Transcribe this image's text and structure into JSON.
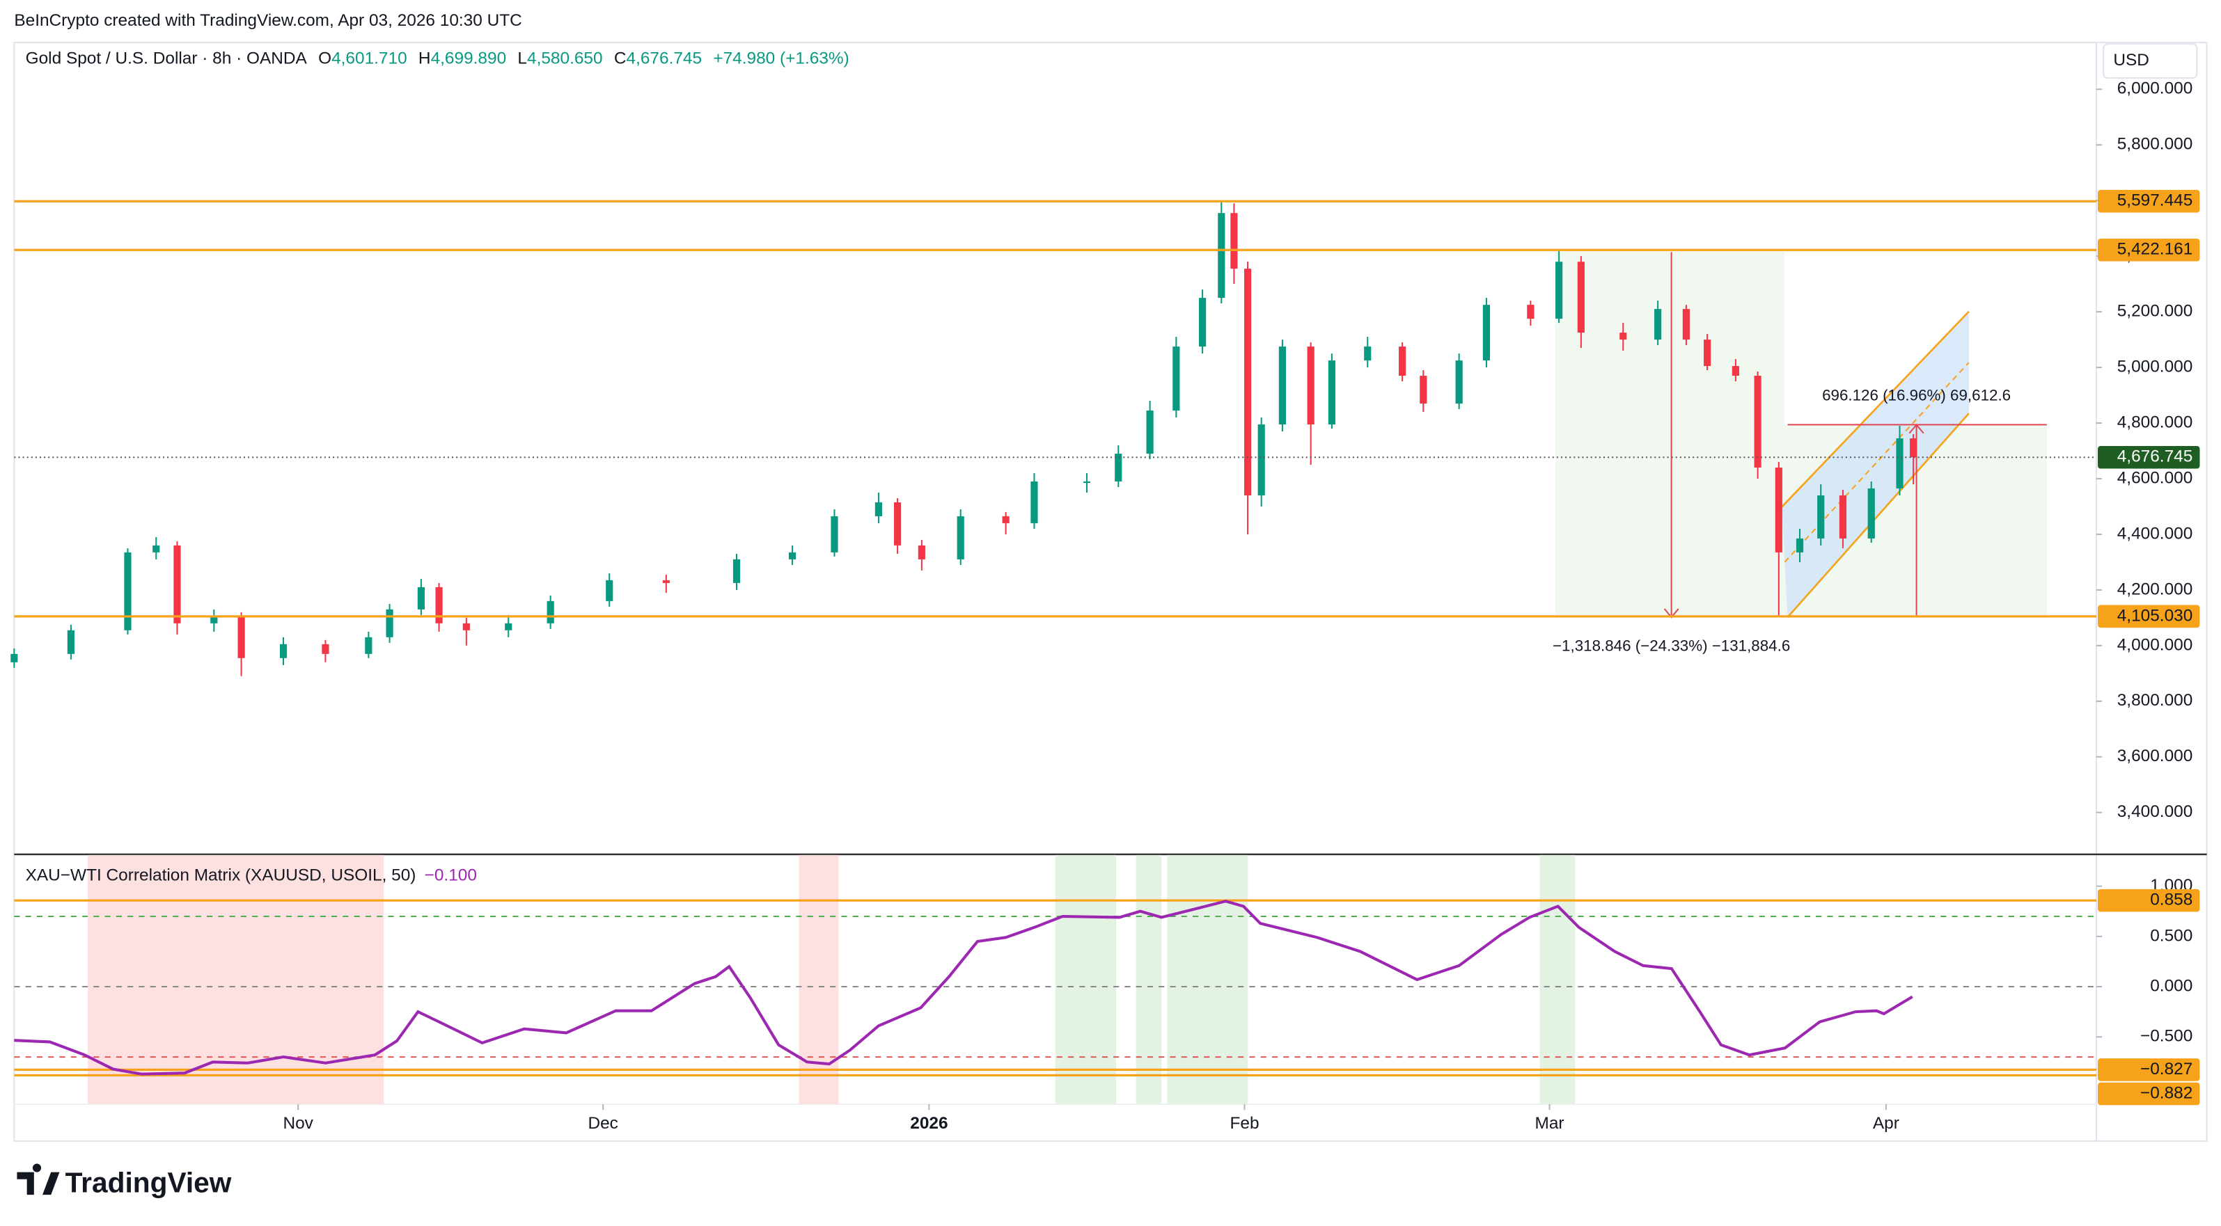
{
  "header": {
    "credit": "BeInCrypto created with TradingView.com, Apr 03, 2026 10:30 UTC",
    "symbol": "Gold Spot / U.S. Dollar · 8h · OANDA",
    "ohlc": [
      {
        "key": "O",
        "value": "4,601.710"
      },
      {
        "key": "H",
        "value": "4,699.890"
      },
      {
        "key": "L",
        "value": "4,580.650"
      },
      {
        "key": "C",
        "value": "4,676.745"
      }
    ],
    "change": "+74.980 (+1.63%)",
    "currency": "USD"
  },
  "annotations": [
    "696.126 (16.96%) 69,612.6",
    "−1,318.846 (−24.33%) −131,884.6"
  ],
  "brand": "TradingView",
  "chart_data": [
    {
      "type": "candlestick",
      "x": [
        0,
        5.4,
        10.8,
        13.5,
        15.5,
        19,
        21.6,
        25.6,
        29.6,
        33.7,
        35.7,
        38.7,
        40.4,
        43,
        47,
        51,
        56.6,
        62,
        68.7,
        74,
        78,
        82.2,
        84,
        86.3,
        90,
        94.3,
        97,
        102,
        105,
        108,
        110.5,
        113,
        114.8,
        116,
        117.3,
        118.6,
        120.6,
        123.3,
        125.3,
        128.7,
        132,
        134,
        137.4,
        140,
        144.2,
        146.9,
        149,
        153,
        156.3,
        159,
        161,
        163.7,
        165.8,
        167.8,
        169.8,
        171.8,
        173.9,
        176.6,
        179.3,
        180.6
      ],
      "open": [
        3940,
        3970,
        4055,
        4335,
        4360,
        4080,
        4105,
        3955,
        4005,
        3970,
        4030,
        4130,
        4210,
        4080,
        4055,
        4080,
        4160,
        4235,
        4225,
        4310,
        4335,
        4465,
        4515,
        4360,
        4310,
        4465,
        4440,
        4590,
        4590,
        4690,
        4845,
        5075,
        5250,
        5555,
        5355,
        4540,
        4795,
        5075,
        4795,
        5025,
        5075,
        4970,
        4870,
        5025,
        5225,
        5175,
        5380,
        5125,
        5100,
        5210,
        5100,
        5005,
        4970,
        4640,
        4335,
        4385,
        4540,
        4385,
        4565,
        4745
      ],
      "high": [
        3990,
        4075,
        4350,
        4390,
        4375,
        4130,
        4120,
        4030,
        4020,
        4050,
        4150,
        4240,
        4225,
        4100,
        4110,
        4180,
        4260,
        4255,
        4330,
        4360,
        4490,
        4550,
        4530,
        4380,
        4490,
        4480,
        4620,
        4620,
        4720,
        4880,
        5110,
        5280,
        5597,
        5590,
        5380,
        4820,
        5100,
        5090,
        5050,
        5110,
        5090,
        4990,
        5050,
        5250,
        5240,
        5422,
        5400,
        5160,
        5240,
        5225,
        5120,
        5030,
        4985,
        4660,
        4420,
        4580,
        4560,
        4590,
        4790,
        4760
      ],
      "low": [
        3920,
        3950,
        4040,
        4310,
        4040,
        4050,
        3890,
        3930,
        3940,
        3955,
        4010,
        4110,
        4050,
        4000,
        4030,
        4060,
        4140,
        4190,
        4200,
        4290,
        4320,
        4440,
        4330,
        4270,
        4290,
        4400,
        4420,
        4550,
        4570,
        4670,
        4820,
        5050,
        5230,
        5300,
        4400,
        4500,
        4770,
        4650,
        4780,
        5000,
        4950,
        4840,
        4850,
        5000,
        5150,
        5160,
        5070,
        5060,
        5080,
        5080,
        4990,
        4950,
        4600,
        4105,
        4300,
        4360,
        4350,
        4370,
        4540,
        4580
      ],
      "close": [
        3970,
        4055,
        4335,
        4360,
        4080,
        4105,
        3955,
        4005,
        3970,
        4030,
        4130,
        4210,
        4080,
        4055,
        4080,
        4160,
        4235,
        4225,
        4310,
        4335,
        4465,
        4515,
        4360,
        4310,
        4465,
        4440,
        4590,
        4590,
        4690,
        4845,
        5075,
        5250,
        5555,
        5355,
        4540,
        4795,
        5075,
        4795,
        5025,
        5075,
        4970,
        4870,
        5025,
        5225,
        5175,
        5380,
        5125,
        5100,
        5210,
        5100,
        5005,
        4970,
        4640,
        4335,
        4385,
        4540,
        4385,
        4565,
        4745,
        4677
      ],
      "up_color": "#089981",
      "down_color": "#f23645",
      "xlim": [
        0,
        198
      ],
      "xticks": [
        {
          "value": 27,
          "label": "Nov"
        },
        {
          "value": 56,
          "label": "Dec"
        },
        {
          "value": 87,
          "label": "2026"
        },
        {
          "value": 117,
          "label": "Feb"
        },
        {
          "value": 146,
          "label": "Mar"
        },
        {
          "value": 178,
          "label": "Apr"
        }
      ],
      "ylim": [
        3252,
        6168
      ],
      "yticks": [
        {
          "value": 3400,
          "label": "3,400.000"
        },
        {
          "value": 3600,
          "label": "3,600.000"
        },
        {
          "value": 3800,
          "label": "3,800.000"
        },
        {
          "value": 4000,
          "label": "4,000.000"
        },
        {
          "value": 4200,
          "label": "4,200.000"
        },
        {
          "value": 4400,
          "label": "4,400.000"
        },
        {
          "value": 4600,
          "label": "4,600.000"
        },
        {
          "value": 4800,
          "label": "4,800.000"
        },
        {
          "value": 5000,
          "label": "5,000.000"
        },
        {
          "value": 5200,
          "label": "5,200.000"
        },
        {
          "value": 5400,
          "label": "5,400.000"
        },
        {
          "value": 5600,
          "label": "5,600.000"
        },
        {
          "value": 5800,
          "label": "5,800.000"
        },
        {
          "value": 6000,
          "label": "6,000.000"
        }
      ],
      "levels": [
        {
          "value": 5597.445,
          "label": "5,597.445"
        },
        {
          "value": 5422.161,
          "label": "5,422.161"
        },
        {
          "value": 4105.03,
          "label": "4,105.030"
        }
      ],
      "level_color": "#f7a21b",
      "last_price": {
        "value": 4676.745,
        "label": "4,676.745"
      },
      "last_price_color": "#1e5e22"
    },
    {
      "type": "line",
      "title": "XAU−WTI Correlation Matrix (XAUUSD, USOIL, 50)",
      "legend_value": "−0.100",
      "color": "#9c27b0",
      "x": [
        0,
        3.4,
        6.7,
        9.4,
        12.1,
        16.2,
        18.9,
        22.2,
        25.6,
        29.6,
        34.3,
        36.4,
        38.4,
        40.4,
        44.5,
        48.5,
        52.5,
        57.2,
        60.6,
        64.7,
        66.7,
        68.0,
        70.0,
        72.7,
        75.4,
        77.5,
        79.5,
        82.2,
        86.2,
        88.9,
        91.6,
        94.3,
        97.0,
        99.7,
        105.1,
        107.1,
        109.1,
        111.8,
        115.2,
        116.9,
        118.5,
        123.9,
        128.0,
        133.4,
        137.4,
        141.4,
        144.1,
        146.8,
        148.8,
        152.2,
        154.9,
        157.6,
        160.3,
        162.3,
        165.0,
        168.4,
        171.7,
        175.1,
        177.1,
        177.8,
        180.5
      ],
      "values": [
        -0.535,
        -0.55,
        -0.68,
        -0.82,
        -0.87,
        -0.86,
        -0.75,
        -0.76,
        -0.7,
        -0.76,
        -0.68,
        -0.54,
        -0.25,
        -0.35,
        -0.56,
        -0.42,
        -0.46,
        -0.24,
        -0.24,
        0.03,
        0.1,
        0.2,
        -0.11,
        -0.58,
        -0.75,
        -0.77,
        -0.63,
        -0.39,
        -0.21,
        0.1,
        0.45,
        0.49,
        0.59,
        0.7,
        0.69,
        0.75,
        0.69,
        0.76,
        0.85,
        0.8,
        0.63,
        0.49,
        0.35,
        0.07,
        0.21,
        0.52,
        0.69,
        0.8,
        0.59,
        0.35,
        0.21,
        0.18,
        -0.25,
        -0.58,
        -0.68,
        -0.61,
        -0.35,
        -0.25,
        -0.24,
        -0.27,
        -0.1
      ],
      "xlim": [
        0,
        198
      ],
      "ylim": [
        -1.17,
        1.31
      ],
      "yticks": [
        {
          "value": 1,
          "label": "1.000"
        },
        {
          "value": 0.5,
          "label": "0.500"
        },
        {
          "value": 0,
          "label": "0.000"
        },
        {
          "value": -0.5,
          "label": "−0.500"
        }
      ],
      "levels": [
        {
          "value": 0.858,
          "label": "0.858"
        },
        {
          "value": -0.827,
          "label": "−0.827"
        },
        {
          "value": -0.882,
          "label": "−0.882"
        }
      ],
      "level_color": "#f7a21b",
      "reference_lines": [
        {
          "value": 0.7,
          "color": "#4caf50"
        },
        {
          "value": 0,
          "color": "#888888"
        },
        {
          "value": -0.7,
          "color": "#e05555"
        }
      ]
    }
  ]
}
